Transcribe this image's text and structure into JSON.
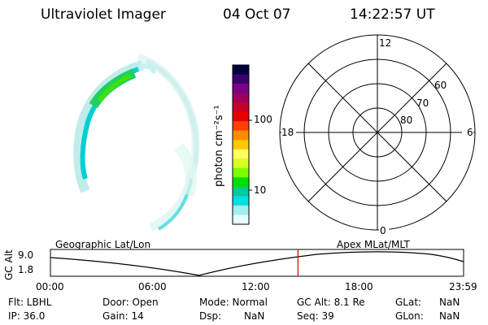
{
  "header": {
    "instrument": "Ultraviolet Imager",
    "date": "04 Oct 07",
    "time": "14:22:57 UT"
  },
  "colorbar": {
    "unit_label": "photon cm⁻²s⁻¹",
    "ticks": [
      "100",
      "10"
    ],
    "colors": [
      "#000040",
      "#3a006e",
      "#7a0088",
      "#a0005a",
      "#c80028",
      "#e80000",
      "#ff4000",
      "#ff8c00",
      "#ffc800",
      "#ffff60",
      "#d8ff20",
      "#7cff00",
      "#00e000",
      "#00c8a0",
      "#00e0e0",
      "#a0f0f0",
      "#e8ffff"
    ]
  },
  "polar_grid": {
    "mlt_labels": {
      "top": "12",
      "left": "18",
      "right": "6",
      "bottom": "0"
    },
    "lat_labels": [
      "60",
      "70",
      "80"
    ]
  },
  "altitude_plot": {
    "y_title": "GC Alt",
    "y_ticks": [
      "9.0",
      "1.8"
    ],
    "left_caption": "Geographic Lat/Lon",
    "right_caption": "Apex MLat/MLT",
    "x_ticks": [
      "00:00",
      "06:00",
      "12:00",
      "18:00",
      "23:59"
    ],
    "current_time_hours": 14.38,
    "marker_color": "#e00000"
  },
  "status": {
    "row1": [
      {
        "text": "Flt: LBHL"
      },
      {
        "text": "Door: Open"
      },
      {
        "text": "Mode: Normal"
      },
      {
        "text": "GC Alt: 8.1 Re"
      },
      {
        "text": "GLat:"
      },
      {
        "text": "NaN"
      }
    ],
    "row2": [
      {
        "text": "IP: 36.0"
      },
      {
        "text": "Gain: 14"
      },
      {
        "text": "Dsp:"
      },
      {
        "text": "NaN"
      },
      {
        "text": "Seq: 39"
      },
      {
        "text": "GLon:"
      },
      {
        "text": "NaN"
      }
    ]
  }
}
